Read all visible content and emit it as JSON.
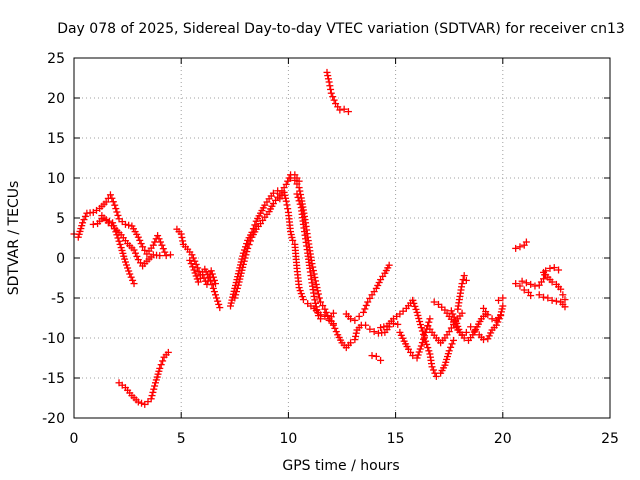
{
  "chart_data": {
    "type": "scatter",
    "title": "Day 078 of 2025, Sidereal Day-to-day VTEC variation (SDTVAR) for receiver cn13",
    "xlabel": "GPS time / hours",
    "ylabel": "SDTVAR / TECUs",
    "xlim": [
      0,
      25
    ],
    "ylim": [
      -20,
      25
    ],
    "xticks": [
      0,
      5,
      10,
      15,
      20,
      25
    ],
    "yticks": [
      -20,
      -15,
      -10,
      -5,
      0,
      5,
      10,
      15,
      20,
      25
    ],
    "grid": true,
    "marker": "+",
    "marker_color": "#ff0000",
    "series": [
      {
        "name": "s1",
        "points": [
          [
            0.0,
            3.0
          ],
          [
            0.2,
            2.6
          ],
          [
            0.4,
            4.4
          ],
          [
            0.6,
            5.6
          ],
          [
            0.9,
            5.7
          ],
          [
            1.2,
            6.2
          ],
          [
            1.5,
            7.0
          ],
          [
            1.7,
            7.9
          ],
          [
            1.9,
            6.6
          ],
          [
            2.1,
            4.9
          ],
          [
            2.4,
            4.2
          ],
          [
            2.7,
            4.0
          ],
          [
            3.0,
            2.6
          ],
          [
            3.2,
            1.4
          ],
          [
            3.4,
            0.5
          ],
          [
            3.7,
            1.6
          ],
          [
            3.9,
            2.8
          ],
          [
            4.1,
            1.6
          ],
          [
            4.3,
            0.3
          ],
          [
            4.5,
            0.4
          ]
        ]
      },
      {
        "name": "s2",
        "points": [
          [
            0.9,
            4.2
          ],
          [
            1.1,
            4.3
          ],
          [
            1.3,
            4.9
          ],
          [
            1.5,
            4.8
          ],
          [
            1.8,
            4.4
          ],
          [
            2.0,
            2.9
          ],
          [
            2.2,
            1.3
          ],
          [
            2.4,
            -0.5
          ],
          [
            2.6,
            -2.0
          ],
          [
            2.8,
            -3.2
          ]
        ]
      },
      {
        "name": "s3",
        "points": [
          [
            1.3,
            5.3
          ],
          [
            1.6,
            4.4
          ],
          [
            1.9,
            3.7
          ],
          [
            2.2,
            2.9
          ],
          [
            2.5,
            1.8
          ],
          [
            2.8,
            1.0
          ],
          [
            3.0,
            -0.2
          ],
          [
            3.2,
            -1.0
          ],
          [
            3.4,
            -0.4
          ],
          [
            3.7,
            0.4
          ],
          [
            4.0,
            0.3
          ]
        ]
      },
      {
        "name": "s4",
        "points": [
          [
            2.1,
            -15.6
          ],
          [
            2.4,
            -16.2
          ],
          [
            2.7,
            -17.2
          ],
          [
            3.0,
            -18.0
          ],
          [
            3.3,
            -18.3
          ],
          [
            3.6,
            -17.6
          ],
          [
            3.8,
            -15.6
          ],
          [
            4.0,
            -13.8
          ],
          [
            4.2,
            -12.4
          ],
          [
            4.4,
            -11.8
          ]
        ]
      },
      {
        "name": "s5",
        "points": [
          [
            4.8,
            3.6
          ],
          [
            5.0,
            3.0
          ],
          [
            5.1,
            1.7
          ],
          [
            5.3,
            1.1
          ],
          [
            5.5,
            0.4
          ],
          [
            5.7,
            -0.8
          ],
          [
            5.9,
            -2.1
          ],
          [
            6.1,
            -1.4
          ],
          [
            6.3,
            -2.4
          ],
          [
            6.5,
            -3.8
          ],
          [
            6.7,
            -5.4
          ],
          [
            6.8,
            -6.2
          ]
        ]
      },
      {
        "name": "s6",
        "points": [
          [
            5.4,
            -0.3
          ],
          [
            5.6,
            -1.5
          ],
          [
            5.8,
            -3.0
          ],
          [
            6.0,
            -2.1
          ],
          [
            6.2,
            -3.3
          ],
          [
            6.4,
            -1.6
          ],
          [
            6.6,
            -3.2
          ]
        ]
      },
      {
        "name": "s7",
        "points": [
          [
            7.3,
            -6.0
          ],
          [
            7.5,
            -3.8
          ],
          [
            7.7,
            -1.6
          ],
          [
            7.9,
            0.6
          ],
          [
            8.1,
            2.2
          ],
          [
            8.3,
            3.2
          ],
          [
            8.5,
            4.6
          ],
          [
            8.7,
            5.6
          ],
          [
            8.9,
            6.6
          ],
          [
            9.1,
            7.4
          ],
          [
            9.3,
            8.1
          ],
          [
            9.5,
            8.4
          ]
        ]
      },
      {
        "name": "s8",
        "points": [
          [
            7.5,
            -5.0
          ],
          [
            7.7,
            -3.0
          ],
          [
            7.9,
            -0.8
          ],
          [
            8.1,
            1.2
          ],
          [
            8.3,
            2.6
          ],
          [
            8.5,
            3.6
          ],
          [
            8.7,
            4.3
          ],
          [
            8.9,
            5.1
          ],
          [
            9.1,
            5.8
          ],
          [
            9.3,
            6.8
          ],
          [
            9.5,
            7.6
          ],
          [
            9.7,
            8.4
          ],
          [
            9.9,
            9.2
          ],
          [
            10.1,
            10.4
          ],
          [
            10.3,
            10.4
          ],
          [
            10.5,
            9.6
          ]
        ]
      },
      {
        "name": "s9",
        "points": [
          [
            9.6,
            7.4
          ],
          [
            9.8,
            8.2
          ],
          [
            9.9,
            7.1
          ],
          [
            10.0,
            5.7
          ],
          [
            10.1,
            3.3
          ],
          [
            10.2,
            2.2
          ],
          [
            10.3,
            1.7
          ],
          [
            10.4,
            -1.3
          ],
          [
            10.5,
            -3.7
          ],
          [
            10.7,
            -5.2
          ],
          [
            10.9,
            -5.7
          ],
          [
            11.2,
            -6.3
          ],
          [
            11.5,
            -7.1
          ],
          [
            11.7,
            -7.3
          ],
          [
            11.9,
            -7.8
          ],
          [
            12.1,
            -6.9
          ]
        ]
      },
      {
        "name": "s10",
        "points": [
          [
            10.1,
            10.0
          ],
          [
            10.3,
            9.7
          ],
          [
            10.5,
            8.8
          ],
          [
            10.6,
            7.5
          ],
          [
            10.7,
            6.0
          ],
          [
            10.8,
            4.4
          ],
          [
            10.9,
            2.6
          ],
          [
            11.0,
            0.9
          ],
          [
            11.1,
            -0.7
          ],
          [
            11.2,
            -2.0
          ],
          [
            11.3,
            -3.3
          ],
          [
            11.4,
            -4.5
          ],
          [
            11.5,
            -5.5
          ],
          [
            11.7,
            -6.4
          ],
          [
            11.9,
            -7.6
          ],
          [
            12.1,
            -8.2
          ]
        ]
      },
      {
        "name": "s11",
        "points": [
          [
            10.4,
            8.0
          ],
          [
            10.6,
            6.3
          ],
          [
            10.7,
            4.2
          ],
          [
            10.8,
            2.4
          ],
          [
            10.9,
            0.6
          ],
          [
            11.0,
            -1.3
          ],
          [
            11.1,
            -3.1
          ],
          [
            11.2,
            -4.8
          ],
          [
            11.3,
            -6.1
          ],
          [
            11.4,
            -7.2
          ],
          [
            11.5,
            -7.6
          ]
        ]
      },
      {
        "name": "s12",
        "points": [
          [
            11.8,
            23.2
          ],
          [
            11.9,
            22.0
          ],
          [
            12.0,
            20.6
          ],
          [
            12.2,
            19.3
          ],
          [
            12.4,
            18.5
          ],
          [
            12.6,
            18.6
          ],
          [
            12.8,
            18.3
          ]
        ]
      },
      {
        "name": "s13",
        "points": [
          [
            12.1,
            -8.4
          ],
          [
            12.3,
            -9.6
          ],
          [
            12.5,
            -10.6
          ],
          [
            12.7,
            -11.2
          ],
          [
            12.9,
            -10.6
          ],
          [
            13.1,
            -10.2
          ],
          [
            13.2,
            -9.0
          ],
          [
            13.4,
            -8.4
          ]
        ]
      },
      {
        "name": "s14",
        "points": [
          [
            12.7,
            -7.0
          ],
          [
            12.9,
            -7.6
          ],
          [
            13.1,
            -7.8
          ],
          [
            13.3,
            -7.3
          ],
          [
            13.5,
            -6.8
          ],
          [
            13.7,
            -5.5
          ],
          [
            13.9,
            -4.6
          ],
          [
            14.1,
            -3.8
          ],
          [
            14.3,
            -2.7
          ],
          [
            14.5,
            -1.9
          ],
          [
            14.7,
            -0.9
          ]
        ]
      },
      {
        "name": "s15",
        "points": [
          [
            13.6,
            -8.4
          ],
          [
            13.8,
            -8.9
          ],
          [
            14.0,
            -9.2
          ],
          [
            14.2,
            -9.4
          ],
          [
            14.5,
            -9.3
          ],
          [
            14.7,
            -8.6
          ],
          [
            14.9,
            -8.2
          ],
          [
            15.1,
            -8.3
          ]
        ]
      },
      {
        "name": "s16",
        "points": [
          [
            13.9,
            -12.2
          ],
          [
            14.1,
            -12.3
          ],
          [
            14.3,
            -12.8
          ]
        ]
      },
      {
        "name": "s17",
        "points": [
          [
            14.3,
            -8.7
          ],
          [
            14.6,
            -8.5
          ],
          [
            14.9,
            -7.6
          ],
          [
            15.2,
            -7.0
          ],
          [
            15.5,
            -6.3
          ],
          [
            15.8,
            -5.3
          ]
        ]
      },
      {
        "name": "s18",
        "points": [
          [
            15.8,
            -5.3
          ],
          [
            16.0,
            -6.8
          ],
          [
            16.2,
            -8.7
          ],
          [
            16.4,
            -10.4
          ],
          [
            16.6,
            -12.0
          ],
          [
            16.7,
            -13.6
          ],
          [
            16.9,
            -14.8
          ],
          [
            17.1,
            -14.4
          ],
          [
            17.3,
            -13.4
          ],
          [
            17.5,
            -11.6
          ],
          [
            17.7,
            -10.3
          ]
        ]
      },
      {
        "name": "s19",
        "points": [
          [
            15.2,
            -9.3
          ],
          [
            15.4,
            -10.4
          ],
          [
            15.6,
            -11.4
          ],
          [
            15.8,
            -12.2
          ],
          [
            16.0,
            -12.5
          ],
          [
            16.2,
            -11.0
          ],
          [
            16.4,
            -9.3
          ],
          [
            16.6,
            -7.6
          ]
        ]
      },
      {
        "name": "s20",
        "points": [
          [
            16.5,
            -8.5
          ],
          [
            16.7,
            -9.3
          ],
          [
            16.9,
            -10.0
          ],
          [
            17.1,
            -10.6
          ],
          [
            17.3,
            -10.0
          ],
          [
            17.5,
            -9.2
          ],
          [
            17.7,
            -8.3
          ],
          [
            17.9,
            -7.6
          ],
          [
            18.1,
            -6.9
          ]
        ]
      },
      {
        "name": "s21",
        "points": [
          [
            16.8,
            -5.5
          ],
          [
            17.0,
            -5.8
          ],
          [
            17.3,
            -6.5
          ],
          [
            17.5,
            -7.3
          ],
          [
            17.7,
            -8.0
          ],
          [
            17.9,
            -9.0
          ],
          [
            18.1,
            -9.6
          ],
          [
            18.3,
            -9.3
          ]
        ]
      },
      {
        "name": "s22",
        "points": [
          [
            17.6,
            -6.6
          ],
          [
            17.8,
            -7.8
          ],
          [
            18.0,
            -9.3
          ],
          [
            18.2,
            -10.0
          ],
          [
            18.4,
            -10.3
          ],
          [
            18.6,
            -9.6
          ],
          [
            18.8,
            -8.6
          ],
          [
            19.0,
            -7.6
          ],
          [
            19.2,
            -7.0
          ]
        ]
      },
      {
        "name": "s23",
        "points": [
          [
            17.9,
            -6.4
          ],
          [
            18.0,
            -4.8
          ],
          [
            18.1,
            -3.2
          ],
          [
            18.2,
            -2.2
          ],
          [
            18.3,
            -2.8
          ]
        ]
      },
      {
        "name": "s24",
        "points": [
          [
            18.5,
            -8.6
          ],
          [
            18.7,
            -9.1
          ],
          [
            18.9,
            -9.6
          ],
          [
            19.1,
            -10.2
          ],
          [
            19.3,
            -10.1
          ],
          [
            19.5,
            -9.0
          ],
          [
            19.7,
            -8.4
          ],
          [
            19.9,
            -7.2
          ]
        ]
      },
      {
        "name": "s25",
        "points": [
          [
            19.1,
            -6.3
          ],
          [
            19.3,
            -7.1
          ],
          [
            19.5,
            -7.6
          ],
          [
            19.7,
            -7.8
          ],
          [
            19.9,
            -7.1
          ],
          [
            20.0,
            -6.0
          ]
        ]
      },
      {
        "name": "s26",
        "points": [
          [
            19.8,
            -5.3
          ],
          [
            20.0,
            -5.0
          ]
        ]
      },
      {
        "name": "s27",
        "points": [
          [
            20.6,
            1.2
          ],
          [
            20.8,
            1.4
          ],
          [
            21.0,
            1.6
          ],
          [
            21.1,
            2.0
          ]
        ]
      },
      {
        "name": "s28",
        "points": [
          [
            20.6,
            -3.2
          ],
          [
            20.8,
            -3.5
          ],
          [
            21.0,
            -4.0
          ],
          [
            21.2,
            -4.3
          ],
          [
            21.3,
            -4.7
          ]
        ]
      },
      {
        "name": "s29",
        "points": [
          [
            20.9,
            -2.9
          ],
          [
            21.1,
            -3.1
          ],
          [
            21.3,
            -3.3
          ],
          [
            21.5,
            -3.5
          ],
          [
            21.7,
            -3.4
          ],
          [
            21.9,
            -2.6
          ],
          [
            22.0,
            -1.6
          ],
          [
            22.2,
            -1.3
          ],
          [
            22.4,
            -1.2
          ],
          [
            22.6,
            -1.5
          ]
        ]
      },
      {
        "name": "s30",
        "points": [
          [
            21.7,
            -4.6
          ],
          [
            21.9,
            -4.9
          ],
          [
            22.1,
            -5.0
          ],
          [
            22.3,
            -5.3
          ],
          [
            22.5,
            -5.4
          ],
          [
            22.7,
            -5.5
          ],
          [
            22.9,
            -6.1
          ]
        ]
      },
      {
        "name": "s31",
        "points": [
          [
            21.9,
            -1.8
          ],
          [
            22.1,
            -2.4
          ],
          [
            22.3,
            -3.0
          ],
          [
            22.5,
            -3.3
          ],
          [
            22.7,
            -3.9
          ],
          [
            22.8,
            -4.6
          ],
          [
            22.9,
            -5.2
          ]
        ]
      }
    ]
  }
}
